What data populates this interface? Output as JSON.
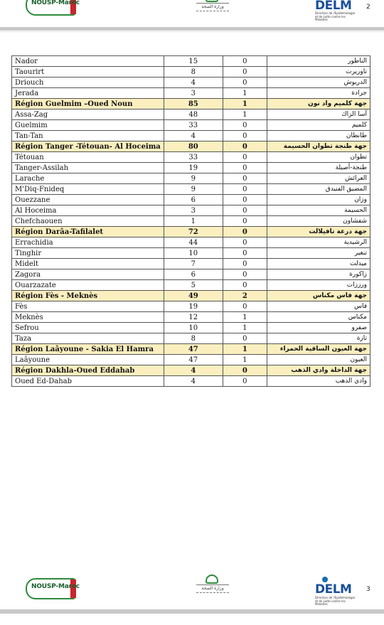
{
  "header_logos": {
    "nousp": "NOUSP-Maroc",
    "ministry_ar": "وزارة الصحة",
    "delm": "DELM",
    "delm_sub": "Direction de l'Epidémiologie et de Lutte contre les Maladies"
  },
  "pages": {
    "top_number": "2",
    "bottom_number": "3"
  },
  "table": {
    "rows": [
      {
        "fr": "Nador",
        "cases": "15",
        "deaths": "0",
        "ar": "الناظور",
        "region": false
      },
      {
        "fr": "Taourirt",
        "cases": "8",
        "deaths": "0",
        "ar": "تاوريرت",
        "region": false
      },
      {
        "fr": "Driouch",
        "cases": "4",
        "deaths": "0",
        "ar": "الدريوش",
        "region": false
      },
      {
        "fr": "Jerada",
        "cases": "3",
        "deaths": "1",
        "ar": "جرادة",
        "region": false
      },
      {
        "fr": "Région Guelmim –Oued Noun",
        "cases": "85",
        "deaths": "1",
        "ar": "جهة كلميم واد نون",
        "region": true
      },
      {
        "fr": "Assa-Zag",
        "cases": "48",
        "deaths": "1",
        "ar": "آسا الزاك",
        "region": false
      },
      {
        "fr": "Guelmim",
        "cases": "33",
        "deaths": "0",
        "ar": "كلميم",
        "region": false
      },
      {
        "fr": "Tan-Tan",
        "cases": "4",
        "deaths": "0",
        "ar": "طانطان",
        "region": false
      },
      {
        "fr": "Région Tanger -Tétouan- Al Hoceima",
        "cases": "80",
        "deaths": "0",
        "ar": "جهة طنجة تطوان الحسيمة",
        "region": true
      },
      {
        "fr": "Tétouan",
        "cases": "33",
        "deaths": "0",
        "ar": "تطوان",
        "region": false
      },
      {
        "fr": "Tanger-Assilah",
        "cases": "19",
        "deaths": "0",
        "ar": "طنجة-أصيلة",
        "region": false
      },
      {
        "fr": "Larache",
        "cases": "9",
        "deaths": "0",
        "ar": "العرائش",
        "region": false
      },
      {
        "fr": "M'Diq-Fnideq",
        "cases": "9",
        "deaths": "0",
        "ar": "المضيق الفنيدق",
        "region": false
      },
      {
        "fr": "Ouezzane",
        "cases": "6",
        "deaths": "0",
        "ar": "وزان",
        "region": false
      },
      {
        "fr": "Al Hoceima",
        "cases": "3",
        "deaths": "0",
        "ar": "الحسيمة",
        "region": false
      },
      {
        "fr": "Chefchaouen",
        "cases": "1",
        "deaths": "0",
        "ar": "شفشاون",
        "region": false
      },
      {
        "fr": "Région Darâa-Tafilalet",
        "cases": "72",
        "deaths": "0",
        "ar": "جهة درعة تافيلالت",
        "region": true
      },
      {
        "fr": "Errachidia",
        "cases": "44",
        "deaths": "0",
        "ar": "الرشيدية",
        "region": false
      },
      {
        "fr": "Tinghir",
        "cases": "10",
        "deaths": "0",
        "ar": "تنغير",
        "region": false
      },
      {
        "fr": "Midelt",
        "cases": "7",
        "deaths": "0",
        "ar": "ميدلت",
        "region": false
      },
      {
        "fr": "Zagora",
        "cases": "6",
        "deaths": "0",
        "ar": "زاكورة",
        "region": false
      },
      {
        "fr": "Ouarzazate",
        "cases": "5",
        "deaths": "0",
        "ar": "ورززات",
        "region": false
      },
      {
        "fr": "Région Fès - Meknès",
        "cases": "49",
        "deaths": "2",
        "ar": "جهة فاس مكناس",
        "region": true
      },
      {
        "fr": "Fès",
        "cases": "19",
        "deaths": "0",
        "ar": "فاس",
        "region": false
      },
      {
        "fr": "Meknès",
        "cases": "12",
        "deaths": "1",
        "ar": "مكناس",
        "region": false
      },
      {
        "fr": "Sefrou",
        "cases": "10",
        "deaths": "1",
        "ar": "صفرو",
        "region": false
      },
      {
        "fr": "Taza",
        "cases": "8",
        "deaths": "0",
        "ar": "تازة",
        "region": false
      },
      {
        "fr": "Région Laâyoune - Sakia El Hamra",
        "cases": "47",
        "deaths": "1",
        "ar": "جهة العيون الساقية الحمراء",
        "region": true
      },
      {
        "fr": "Laâyoune",
        "cases": "47",
        "deaths": "1",
        "ar": "العيون",
        "region": false
      },
      {
        "fr": "Région Dakhla-Oued Eddahab",
        "cases": "4",
        "deaths": "0",
        "ar": "جهة الداخلة وادي الذهب",
        "region": true
      },
      {
        "fr": "Oued Ed-Dahab",
        "cases": "4",
        "deaths": "0",
        "ar": "وادي الذهب",
        "region": false
      }
    ]
  }
}
